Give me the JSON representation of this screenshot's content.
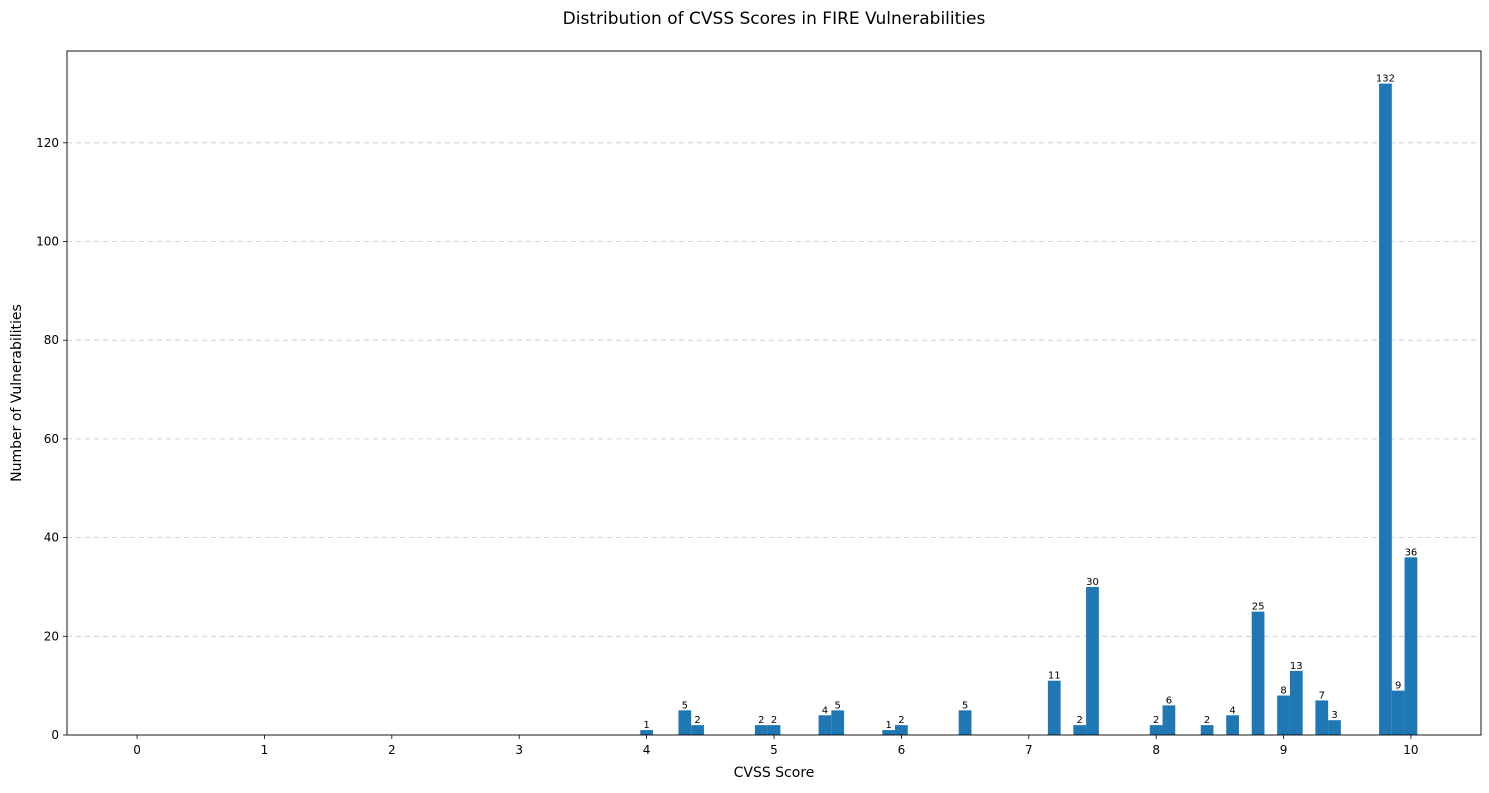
{
  "chart_data": {
    "type": "bar",
    "title": "Distribution of CVSS Scores in FIRE Vulnerabilities",
    "xlabel": "CVSS Score",
    "ylabel": "Number of Vulnerabilities",
    "xlim": [
      -0.55,
      10.55
    ],
    "ylim": [
      0,
      138.6
    ],
    "xticks": [
      0,
      1,
      2,
      3,
      4,
      5,
      6,
      7,
      8,
      9,
      10
    ],
    "yticks": [
      0,
      20,
      40,
      60,
      80,
      100,
      120
    ],
    "grid": "y-dashed",
    "bar_width": 0.1,
    "bar_color": "#1f77b4",
    "points": [
      {
        "x": 4.0,
        "y": 1
      },
      {
        "x": 4.3,
        "y": 5
      },
      {
        "x": 4.4,
        "y": 2
      },
      {
        "x": 4.9,
        "y": 2
      },
      {
        "x": 5.0,
        "y": 2
      },
      {
        "x": 5.4,
        "y": 4
      },
      {
        "x": 5.5,
        "y": 5
      },
      {
        "x": 5.9,
        "y": 1
      },
      {
        "x": 6.0,
        "y": 2
      },
      {
        "x": 6.5,
        "y": 5
      },
      {
        "x": 7.2,
        "y": 11
      },
      {
        "x": 7.4,
        "y": 2
      },
      {
        "x": 7.5,
        "y": 30
      },
      {
        "x": 8.0,
        "y": 2
      },
      {
        "x": 8.1,
        "y": 6
      },
      {
        "x": 8.4,
        "y": 2
      },
      {
        "x": 8.6,
        "y": 4
      },
      {
        "x": 8.8,
        "y": 25
      },
      {
        "x": 9.0,
        "y": 8
      },
      {
        "x": 9.1,
        "y": 13
      },
      {
        "x": 9.3,
        "y": 7
      },
      {
        "x": 9.4,
        "y": 3
      },
      {
        "x": 9.8,
        "y": 132
      },
      {
        "x": 9.9,
        "y": 9
      },
      {
        "x": 10.0,
        "y": 36
      }
    ]
  }
}
